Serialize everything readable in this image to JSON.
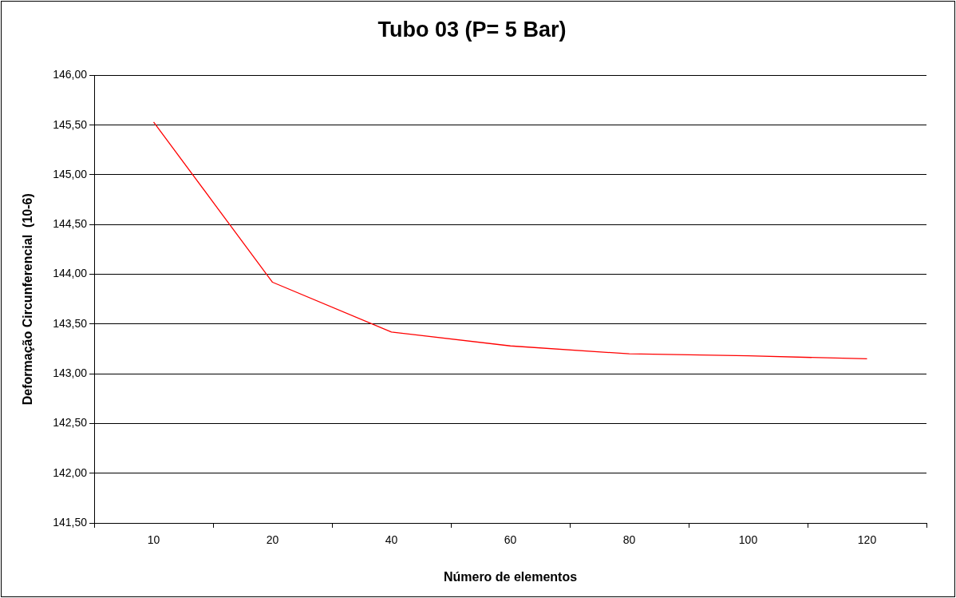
{
  "chart_data": {
    "type": "line",
    "title": "Tubo 03 (P= 5 Bar)",
    "xlabel": "Número de elementos",
    "ylabel": "Deformação Circunferencial  (10-6)",
    "categories": [
      "10",
      "20",
      "40",
      "60",
      "80",
      "100",
      "120"
    ],
    "series": [
      {
        "color": "#ff0000",
        "values": [
          145.53,
          143.92,
          143.42,
          143.28,
          143.2,
          143.18,
          143.15
        ]
      }
    ],
    "ylim": [
      141.5,
      146
    ],
    "yticks": [
      {
        "value": 141.5,
        "label": "141,50"
      },
      {
        "value": 142,
        "label": "142,00"
      },
      {
        "value": 142.5,
        "label": "142,50"
      },
      {
        "value": 143,
        "label": "143,00"
      },
      {
        "value": 143.5,
        "label": "143,50"
      },
      {
        "value": 144,
        "label": "144,00"
      },
      {
        "value": 144.5,
        "label": "144,50"
      },
      {
        "value": 145,
        "label": "145,00"
      },
      {
        "value": 145.5,
        "label": "145,50"
      },
      {
        "value": 146,
        "label": "146,00"
      }
    ],
    "grid": "y",
    "legend": false,
    "marker": "none",
    "line_style": "solid"
  }
}
